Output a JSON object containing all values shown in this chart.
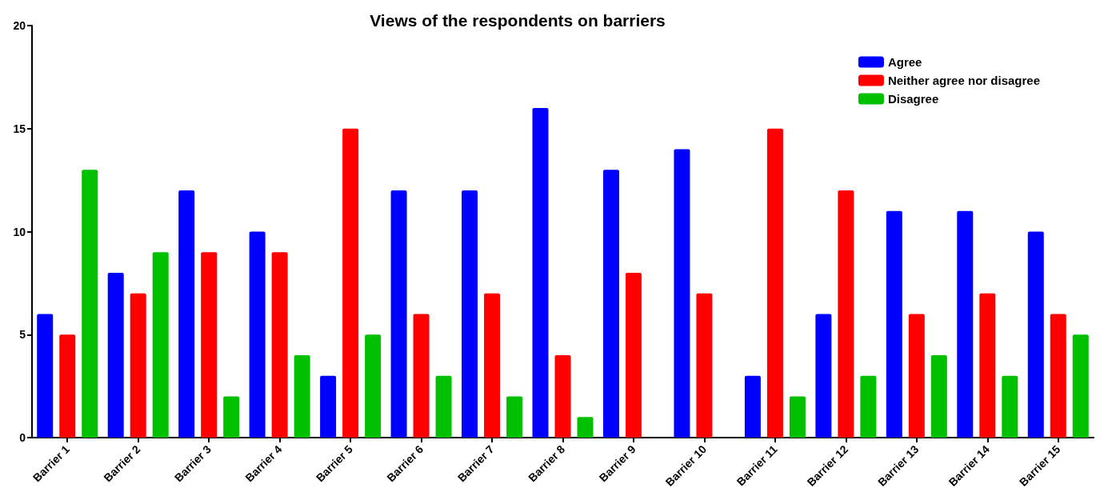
{
  "chart_data": {
    "type": "bar",
    "title": "Views of the respondents on barriers",
    "categories": [
      "Barrier 1",
      "Barrier 2",
      "Barrier 3",
      "Barrier 4",
      "Barrier 5",
      "Barrier 6",
      "Barrier 7",
      "Barrier 8",
      "Barrier 9",
      "Barrier 10",
      "Barrier 11",
      "Barrier 12",
      "Barrier 13",
      "Barrier 14",
      "Barrier 15"
    ],
    "series": [
      {
        "name": "Agree",
        "color": "#0000ff",
        "values": [
          6,
          8,
          12,
          10,
          3,
          12,
          12,
          16,
          13,
          14,
          3,
          6,
          11,
          11,
          10
        ]
      },
      {
        "name": "Neither agree nor disagree",
        "color": "#ff0000",
        "values": [
          5,
          7,
          9,
          9,
          15,
          6,
          7,
          4,
          8,
          7,
          15,
          12,
          6,
          7,
          6
        ]
      },
      {
        "name": "Disagree",
        "color": "#00c000",
        "values": [
          13,
          9,
          2,
          4,
          5,
          3,
          2,
          1,
          0,
          0,
          2,
          3,
          4,
          3,
          5
        ]
      }
    ],
    "ylim": [
      0,
      20
    ],
    "yticks": [
      0,
      5,
      10,
      15,
      20
    ],
    "grid": false,
    "legend": "top right"
  }
}
